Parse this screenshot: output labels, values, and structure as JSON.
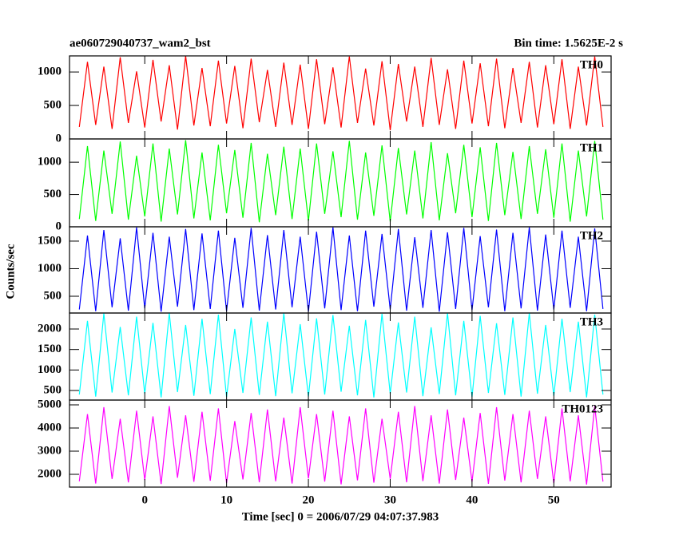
{
  "chart_data": {
    "type": "line",
    "title": "ae060729040737_wam2_bst",
    "subtitle": "Bin time: 1.5625E-2 s",
    "ylabel": "Counts/sec",
    "xlabel": "Time [sec] 0 = 2006/07/29 04:07:37.983",
    "xlim": [
      -9.2,
      57
    ],
    "xticks": [
      0,
      10,
      20,
      30,
      40,
      50
    ],
    "x": [
      -8,
      -7,
      -6,
      -5,
      -4,
      -3,
      -2,
      -1,
      0,
      1,
      2,
      3,
      4,
      5,
      6,
      7,
      8,
      9,
      10,
      11,
      12,
      13,
      14,
      15,
      16,
      17,
      18,
      19,
      20,
      21,
      22,
      23,
      24,
      25,
      26,
      27,
      28,
      29,
      30,
      31,
      32,
      33,
      34,
      35,
      36,
      37,
      38,
      39,
      40,
      41,
      42,
      43,
      44,
      45,
      46,
      47,
      48,
      49,
      50,
      51,
      52,
      53,
      54,
      55,
      56
    ],
    "series": [
      {
        "name": "TH0",
        "color": "#ff0000",
        "ylim": [
          0,
          1240
        ],
        "yticks": [
          0,
          500,
          1000
        ],
        "values": [
          180,
          1150,
          210,
          1080,
          150,
          1220,
          240,
          1010,
          170,
          1180,
          260,
          1100,
          140,
          1240,
          200,
          1060,
          190,
          1170,
          230,
          1090,
          160,
          1200,
          250,
          1030,
          180,
          1140,
          210,
          1110,
          150,
          1190,
          220,
          1070,
          170,
          1230,
          240,
          1050,
          200,
          1160,
          130,
          1120,
          260,
          1080,
          180,
          1210,
          210,
          1040,
          150,
          1170,
          230,
          1130,
          190,
          1200,
          160,
          1060,
          240,
          1150,
          170,
          1100,
          220,
          1190,
          150,
          1080,
          200,
          1230,
          180
        ]
      },
      {
        "name": "TH1",
        "color": "#00ff00",
        "ylim": [
          0,
          1360
        ],
        "yticks": [
          0,
          500,
          1000
        ],
        "values": [
          120,
          1250,
          90,
          1180,
          200,
          1320,
          110,
          1100,
          160,
          1290,
          80,
          1210,
          190,
          1340,
          130,
          1150,
          100,
          1270,
          210,
          1190,
          140,
          1300,
          70,
          1130,
          180,
          1240,
          120,
          1210,
          90,
          1290,
          200,
          1170,
          150,
          1330,
          110,
          1150,
          170,
          1260,
          80,
          1220,
          190,
          1180,
          130,
          1310,
          100,
          1140,
          210,
          1270,
          150,
          1230,
          90,
          1300,
          180,
          1160,
          120,
          1250,
          200,
          1200,
          140,
          1290,
          80,
          1180,
          160,
          1330,
          110
        ]
      },
      {
        "name": "TH2",
        "color": "#0000ff",
        "ylim": [
          196,
          1760
        ],
        "yticks": [
          500,
          1000,
          1500
        ],
        "values": [
          260,
          1600,
          230,
          1700,
          300,
          1550,
          240,
          1750,
          280,
          1650,
          220,
          1580,
          310,
          1720,
          250,
          1640,
          270,
          1690,
          230,
          1560,
          290,
          1740,
          240,
          1610,
          260,
          1700,
          300,
          1580,
          220,
          1670,
          280,
          1750,
          250,
          1600,
          230,
          1690,
          310,
          1630,
          260,
          1720,
          240,
          1570,
          290,
          1700,
          220,
          1660,
          270,
          1740,
          250,
          1590,
          300,
          1710,
          230,
          1650,
          280,
          1750,
          240,
          1620,
          260,
          1690,
          290,
          1580,
          230,
          1730,
          270
        ]
      },
      {
        "name": "TH3",
        "color": "#00ffff",
        "ylim": [
          266,
          2390
        ],
        "yticks": [
          500,
          1000,
          1500,
          2000
        ],
        "values": [
          400,
          2200,
          350,
          2380,
          450,
          2050,
          380,
          2300,
          420,
          2150,
          330,
          2390,
          460,
          2100,
          370,
          2250,
          410,
          2350,
          340,
          2000,
          440,
          2280,
          390,
          2180,
          360,
          2390,
          430,
          2120,
          350,
          2260,
          400,
          2340,
          470,
          2080,
          380,
          2220,
          330,
          2370,
          420,
          2160,
          450,
          2300,
          360,
          2040,
          410,
          2390,
          380,
          2200,
          340,
          2320,
          440,
          2140,
          390,
          2280,
          350,
          2390,
          420,
          2100,
          370,
          2250,
          460,
          2180,
          330,
          2350,
          400
        ]
      },
      {
        "name": "TH0123",
        "color": "#ff00ff",
        "ylim": [
          1448,
          5207
        ],
        "yticks": [
          2000,
          3000,
          4000,
          5000
        ],
        "values": [
          1700,
          4600,
          1600,
          4900,
          1800,
          4400,
          1650,
          4750,
          1750,
          4500,
          1580,
          4950,
          1850,
          4550,
          1680,
          4700,
          1720,
          4850,
          1620,
          4300,
          1780,
          4650,
          1660,
          4800,
          1700,
          4450,
          1600,
          4900,
          1820,
          4600,
          1690,
          4750,
          1570,
          4500,
          1740,
          4850,
          1640,
          4400,
          1800,
          4700,
          1660,
          4950,
          1710,
          4550,
          1600,
          4800,
          1760,
          4450,
          1680,
          4650,
          1590,
          4900,
          1730,
          4600,
          1650,
          4750,
          1800,
          4500,
          1620,
          4850,
          1700,
          4550,
          1560,
          4950,
          1690
        ]
      }
    ]
  }
}
